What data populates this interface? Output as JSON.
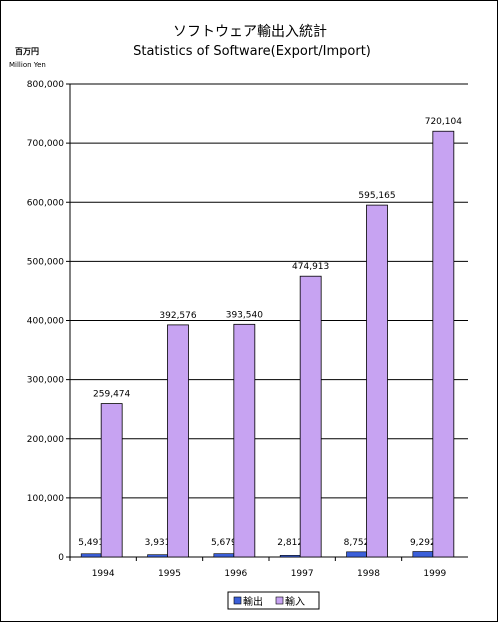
{
  "chart_data": {
    "type": "bar",
    "title": "ソフトウェア輸出入統計",
    "subtitle": "Statistics of Software(Export/Import)",
    "unit_ja": "百万円",
    "unit_en": "Million Yen",
    "categories": [
      "1994",
      "1995",
      "1996",
      "1997",
      "1998",
      "1999"
    ],
    "series": [
      {
        "name": "輸出",
        "color": "#3b5fd9",
        "values": [
          5491,
          3931,
          5679,
          2812,
          8752,
          9292
        ],
        "labels": [
          "5,491",
          "3,931",
          "5,679",
          "2,812",
          "8,752",
          "9,292"
        ]
      },
      {
        "name": "輸入",
        "color": "#c7a3f2",
        "values": [
          259474,
          392576,
          393540,
          474913,
          595165,
          720104
        ],
        "labels": [
          "259,474",
          "392,576",
          "393,540",
          "474,913",
          "595,165",
          "720,104"
        ]
      }
    ],
    "ylim": [
      0,
      800000
    ],
    "yticks": [
      "0",
      "100,000",
      "200,000",
      "300,000",
      "400,000",
      "500,000",
      "600,000",
      "700,000",
      "800,000"
    ],
    "grid": true,
    "legend_position": "bottom"
  }
}
